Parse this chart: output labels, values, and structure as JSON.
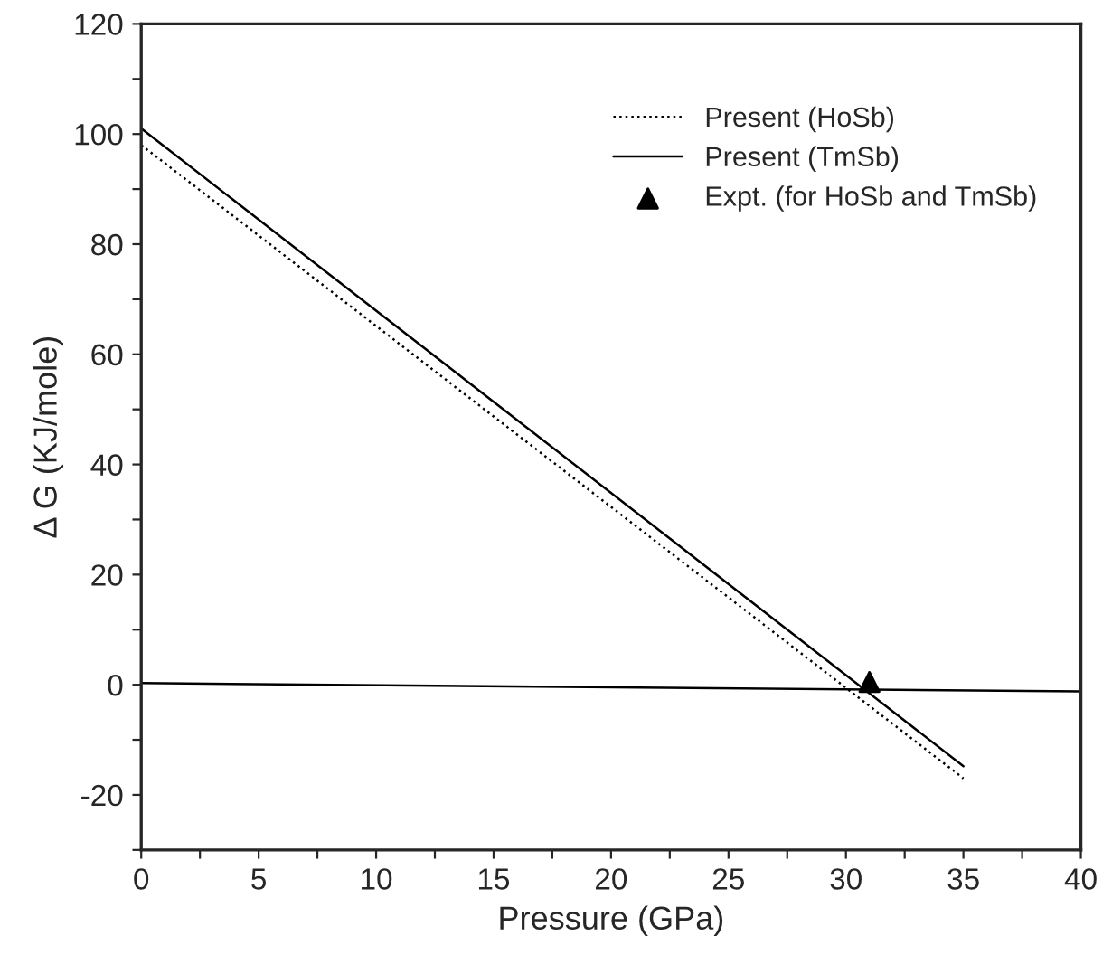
{
  "chart_data": {
    "type": "line",
    "xlabel": "Pressure (GPa)",
    "ylabel": "Δ G (KJ/mole)",
    "xlim": [
      0,
      40
    ],
    "ylim": [
      -30,
      120
    ],
    "xticks": [
      0,
      {
        "value": 2.5,
        "label": null
      },
      5,
      {
        "value": 7.5,
        "label": null
      },
      10,
      {
        "value": 12.5,
        "label": null
      },
      15,
      {
        "value": 17.5,
        "label": null
      },
      20,
      {
        "value": 22.5,
        "label": null
      },
      25,
      {
        "value": 27.5,
        "label": null
      },
      30,
      {
        "value": 32.5,
        "label": null
      },
      35,
      {
        "value": 37.5,
        "label": null
      },
      40
    ],
    "yticks": [
      {
        "value": -30,
        "label": null
      },
      -20,
      {
        "value": -10,
        "label": null
      },
      0,
      {
        "value": 10,
        "label": null
      },
      20,
      {
        "value": 30,
        "label": null
      },
      40,
      {
        "value": 50,
        "label": null
      },
      60,
      {
        "value": 70,
        "label": null
      },
      80,
      {
        "value": 90,
        "label": null
      },
      100,
      {
        "value": 110,
        "label": null
      },
      120
    ],
    "grid": false,
    "legend": "top right",
    "series": [
      {
        "name": "Present (HoSb)",
        "color": "#000000",
        "line_style": "dotted",
        "x": [
          0,
          35
        ],
        "values": [
          98,
          -17
        ]
      },
      {
        "name": "Present (TmSb)",
        "color": "#000000",
        "line_style": "solid",
        "x": [
          0,
          35
        ],
        "values": [
          101,
          -14.8
        ]
      },
      {
        "name": "Expt. (for HoSb and TmSb)",
        "type": "scatter",
        "marker": "triangle",
        "color": "#000000",
        "x": [
          31
        ],
        "values": [
          0.5
        ]
      },
      {
        "color": "#000000",
        "line_style": "solid",
        "x": [
          0,
          40
        ],
        "values": [
          0.3,
          -1.2
        ]
      }
    ]
  }
}
